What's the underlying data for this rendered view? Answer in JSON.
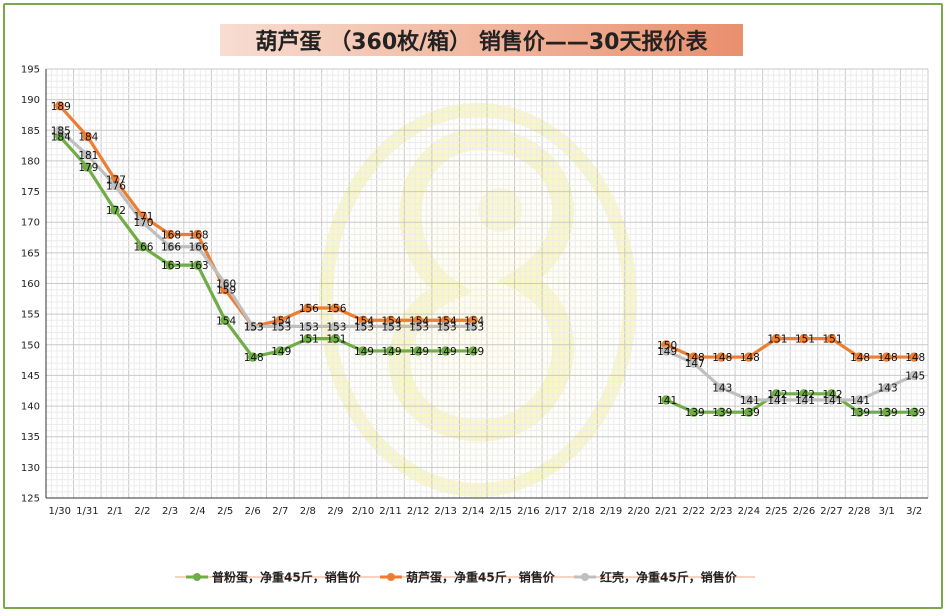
{
  "chart_data": {
    "type": "line",
    "title": "葫芦蛋 （360枚/箱） 销售价——30天报价表",
    "xlabel": "",
    "ylabel": "",
    "ylim": [
      125,
      195
    ],
    "ytick_step": 5,
    "grid": true,
    "legend_position": "bottom",
    "x": [
      "1/30",
      "1/31",
      "2/1",
      "2/2",
      "2/3",
      "2/4",
      "2/5",
      "2/6",
      "2/7",
      "2/8",
      "2/9",
      "2/10",
      "2/11",
      "2/12",
      "2/13",
      "2/14",
      "2/15",
      "2/16",
      "2/17",
      "2/18",
      "2/19",
      "2/20",
      "2/21",
      "2/22",
      "2/23",
      "2/24",
      "2/25",
      "2/26",
      "2/27",
      "2/28",
      "3/1",
      "3/2"
    ],
    "series": [
      {
        "name": "普粉蛋，净重45斤，销售价",
        "color": "#70ad47",
        "values": [
          184,
          179,
          172,
          166,
          163,
          163,
          154,
          148,
          149,
          151,
          151,
          149,
          149,
          149,
          149,
          149,
          null,
          null,
          null,
          null,
          null,
          null,
          141,
          139,
          139,
          139,
          142,
          142,
          142,
          139,
          139,
          139
        ]
      },
      {
        "name": "葫芦蛋，净重45斤，销售价",
        "color": "#ed7d31",
        "values": [
          189,
          184,
          177,
          171,
          168,
          168,
          159,
          153,
          154,
          156,
          156,
          154,
          154,
          154,
          154,
          154,
          null,
          null,
          null,
          null,
          null,
          null,
          150,
          148,
          148,
          148,
          151,
          151,
          151,
          148,
          148,
          148
        ]
      },
      {
        "name": "红壳，净重45斤，销售价",
        "color": "#bfbfbf",
        "values": [
          185,
          181,
          176,
          170,
          166,
          166,
          160,
          153,
          153,
          153,
          153,
          153,
          153,
          153,
          153,
          153,
          null,
          null,
          null,
          null,
          null,
          null,
          149,
          147,
          143,
          141,
          141,
          141,
          141,
          141,
          143,
          145
        ]
      }
    ]
  }
}
